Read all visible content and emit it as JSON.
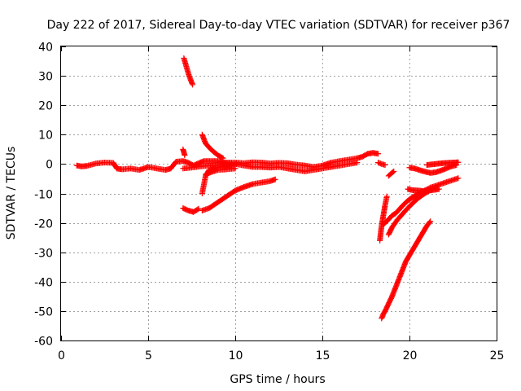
{
  "chart_data": {
    "type": "scatter",
    "title": "Day 222 of 2017, Sidereal Day-to-day VTEC variation (SDTVAR) for receiver p367",
    "xlabel": "GPS time / hours",
    "ylabel": "SDTVAR / TECUs",
    "xlim": [
      0,
      25
    ],
    "ylim": [
      -60,
      40
    ],
    "xticks": [
      "0",
      "5",
      "10",
      "15",
      "20",
      "25"
    ],
    "yticks": [
      "40",
      "30",
      "20",
      "10",
      "0",
      "-10",
      "-20",
      "-30",
      "-40",
      "-50",
      "-60"
    ],
    "grid": true,
    "marker": "plus",
    "marker_color": "#ff0000",
    "series": [
      {
        "x": [
          0.9,
          1.2,
          1.5,
          2.0,
          2.5,
          3.0,
          3.2,
          3.5,
          4.0,
          4.5,
          5.0,
          5.5,
          6.0,
          6.3,
          6.6,
          7.0,
          7.3,
          7.6,
          7.9,
          8.2,
          8.6,
          9.0,
          9.5,
          10.0,
          10.5,
          11.0,
          11.5,
          12.0,
          12.5,
          13.0,
          13.5,
          14.0,
          14.5,
          15.0,
          15.5,
          16.0,
          16.5,
          17.0,
          17.3,
          17.6,
          17.9,
          18.2
        ],
        "y": [
          -0.5,
          -0.8,
          -0.6,
          0.2,
          0.5,
          0.4,
          -1.5,
          -1.8,
          -1.5,
          -2.0,
          -1.0,
          -1.5,
          -2.0,
          -1.5,
          0.8,
          1.0,
          0.5,
          -0.5,
          0.3,
          1.0,
          1.0,
          1.0,
          0.5,
          0.5,
          0.3,
          0.6,
          0.5,
          0.2,
          0.4,
          0.3,
          -0.2,
          -0.5,
          -1.0,
          -0.5,
          0.5,
          1.0,
          1.5,
          2.0,
          2.5,
          3.5,
          3.8,
          3.5
        ]
      },
      {
        "x": [
          9.0,
          9.5,
          10.0,
          10.5,
          11.0,
          11.5,
          12.0,
          12.5,
          13.0,
          13.5,
          14.0,
          14.5,
          15.0,
          15.5,
          16.0,
          16.5,
          17.0
        ],
        "y": [
          0.5,
          0.3,
          0.0,
          -0.5,
          -1.0,
          -1.0,
          -1.2,
          -1.0,
          -1.5,
          -2.0,
          -2.5,
          -2.0,
          -1.5,
          -1.0,
          -0.5,
          0.0,
          0.5
        ]
      },
      {
        "x": [
          7.05,
          7.15,
          7.25,
          7.35,
          7.45,
          7.55
        ],
        "y": [
          36,
          34,
          32,
          30,
          28.5,
          27
        ]
      },
      {
        "x": [
          7.0,
          7.05,
          7.1
        ],
        "y": [
          5,
          4,
          3
        ]
      },
      {
        "x": [
          7.0,
          7.3,
          7.6,
          7.9
        ],
        "y": [
          -15,
          -15.8,
          -16.3,
          -15.2
        ]
      },
      {
        "x": [
          8.1,
          8.3,
          8.6,
          9.0,
          9.3
        ],
        "y": [
          10,
          7,
          5,
          3,
          2
        ]
      },
      {
        "x": [
          8.1,
          8.2,
          8.3,
          8.5,
          8.8,
          9.2,
          9.6,
          10.0
        ],
        "y": [
          -10,
          -7,
          -4,
          -2,
          -1.5,
          -0.8,
          -0.5,
          -0.5
        ]
      },
      {
        "x": [
          8.1,
          8.5,
          9.0,
          9.5,
          10.0,
          10.5,
          11.0,
          11.5,
          12.0,
          12.3
        ],
        "y": [
          -15.8,
          -15,
          -13,
          -11,
          -9,
          -7.8,
          -6.8,
          -6.3,
          -5.8,
          -5.2
        ]
      },
      {
        "x": [
          8.3,
          8.6,
          9.0,
          9.5,
          10.0
        ],
        "y": [
          -3.5,
          -2.8,
          -2.0,
          -1.8,
          -1.5
        ]
      },
      {
        "x": [
          7.0,
          7.5,
          8.0,
          8.5,
          9.0,
          9.5,
          10.0
        ],
        "y": [
          -1.5,
          -1.2,
          -0.8,
          -0.5,
          -0.3,
          -0.2,
          0.0
        ]
      },
      {
        "x": [
          18.4,
          18.5,
          18.6,
          18.8,
          19.0,
          19.2,
          19.4,
          19.6,
          19.8,
          20.0,
          20.2,
          20.4,
          20.6,
          20.8,
          21.0,
          21.2
        ],
        "y": [
          -52.5,
          -51,
          -50,
          -47.5,
          -45,
          -42,
          -39,
          -36,
          -33,
          -31,
          -29,
          -27,
          -25,
          -23,
          -21,
          -19.5
        ]
      },
      {
        "x": [
          18.3,
          18.4,
          18.5,
          18.6,
          18.7
        ],
        "y": [
          -26,
          -21,
          -17.5,
          -14,
          -11
        ]
      },
      {
        "x": [
          18.5,
          18.6,
          18.8,
          19.0,
          19.2,
          19.4,
          19.6,
          19.8,
          20.0,
          20.2,
          20.4,
          20.6,
          20.8,
          21.0,
          21.2,
          21.4,
          21.6,
          21.8,
          22.0,
          22.2,
          22.4,
          22.6,
          22.8
        ],
        "y": [
          -20.5,
          -20,
          -18.8,
          -17.5,
          -16.8,
          -15.5,
          -14.2,
          -13,
          -12,
          -11.2,
          -10.5,
          -9.8,
          -9.2,
          -8.6,
          -8.0,
          -7.6,
          -7.2,
          -6.8,
          -6.4,
          -6.0,
          -5.6,
          -5.2,
          -4.8
        ]
      },
      {
        "x": [
          18.8,
          19.0,
          19.3,
          19.6,
          19.9,
          20.2,
          20.5,
          20.8,
          21.1,
          21.4
        ],
        "y": [
          -24,
          -21.5,
          -19,
          -17,
          -15,
          -13.2,
          -11.6,
          -10.3,
          -9.2,
          -8.2
        ]
      },
      {
        "x": [
          19.9,
          20.2,
          20.5,
          20.8,
          21.1,
          21.4,
          21.7
        ],
        "y": [
          -8.5,
          -8.9,
          -9.0,
          -9.2,
          -9.0,
          -8.8,
          -8.5
        ]
      },
      {
        "x": [
          20.0,
          20.3,
          20.6,
          20.9,
          21.2,
          21.5,
          21.8,
          22.1,
          22.4,
          22.7
        ],
        "y": [
          -1.2,
          -1.5,
          -2.1,
          -2.6,
          -3.0,
          -2.8,
          -2.2,
          -1.5,
          -0.8,
          -0.3
        ]
      },
      {
        "x": [
          21.0,
          21.3,
          21.6,
          21.9,
          22.2,
          22.5,
          22.8
        ],
        "y": [
          -0.3,
          -0.1,
          0.1,
          0.3,
          0.4,
          0.5,
          0.6
        ]
      },
      {
        "x": [
          18.8,
          18.95,
          19.1
        ],
        "y": [
          -4,
          -3.2,
          -2.5
        ]
      },
      {
        "x": [
          18.2,
          18.4,
          18.6
        ],
        "y": [
          0.5,
          0.0,
          -0.3
        ]
      }
    ]
  }
}
